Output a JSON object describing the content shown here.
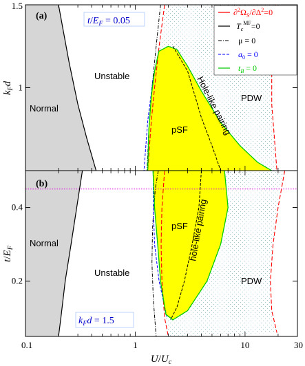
{
  "chart_data": {
    "type": "line",
    "x_axis": {
      "label": "U/U_c",
      "scale": "log",
      "range": [
        0.1,
        30
      ],
      "ticks": [
        "0.1",
        "1",
        "10",
        "30"
      ]
    },
    "legend": {
      "placement": "top-right",
      "entries": [
        {
          "label": "∂²Ω_S/∂Δ²=0",
          "color": "#ff0000",
          "style": "solid"
        },
        {
          "label": "T_c^MF=0",
          "color": "#000000",
          "style": "solid"
        },
        {
          "label": "μ = 0",
          "color": "#000000",
          "style": "dash-dot"
        },
        {
          "label": "a_0 = 0",
          "color": "#0000ff",
          "style": "dashed"
        },
        {
          "label": "t_B = 0",
          "color": "#00cc00",
          "style": "solid"
        }
      ]
    },
    "panels": [
      {
        "letter": "(a)",
        "param_label": "t/E_F = 0.05",
        "ylabel": "k_F d",
        "ylim": [
          0.5,
          1.5
        ],
        "yticks": [
          1.5,
          1
        ],
        "regions": [
          "Normal",
          "Unstable",
          "pSF",
          "PDW",
          "Hole-like pairing"
        ],
        "curves": [
          {
            "name": "T_c^MF=0",
            "points": [
              [
                0.2,
                1.5
              ],
              [
                0.22,
                1.35
              ],
              [
                0.25,
                1.15
              ],
              [
                0.3,
                0.9
              ],
              [
                0.36,
                0.7
              ],
              [
                0.44,
                0.5
              ]
            ]
          },
          {
            "name": "mu=0",
            "points": [
              [
                1.7,
                1.5
              ],
              [
                1.55,
                1.25
              ],
              [
                1.42,
                1.0
              ],
              [
                1.33,
                0.75
              ],
              [
                1.28,
                0.5
              ]
            ]
          },
          {
            "name": "a_0=0",
            "points": [
              [
                1.64,
                1.22
              ],
              [
                1.45,
                1.05
              ],
              [
                1.3,
                0.8
              ],
              [
                1.2,
                0.5
              ]
            ]
          },
          {
            "name": "d2Omega_left",
            "points": [
              [
                1.85,
                1.5
              ],
              [
                1.65,
                1.25
              ],
              [
                1.5,
                1.0
              ],
              [
                1.4,
                0.8
              ],
              [
                1.3,
                0.5
              ]
            ]
          },
          {
            "name": "d2Omega_right",
            "points": [
              [
                19,
                1.5
              ],
              [
                18,
                1.3
              ],
              [
                17.5,
                1.1
              ],
              [
                17.5,
                0.9
              ],
              [
                18.5,
                0.7
              ],
              [
                19.5,
                0.5
              ]
            ]
          },
          {
            "name": "t_B=0_upper",
            "points": [
              [
                1.64,
                1.22
              ],
              [
                2.0,
                1.25
              ],
              [
                2.4,
                1.23
              ],
              [
                3.0,
                1.13
              ],
              [
                4.0,
                0.98
              ],
              [
                6.0,
                0.79
              ],
              [
                9.0,
                0.65
              ],
              [
                13.0,
                0.55
              ],
              [
                17.5,
                0.5
              ]
            ]
          },
          {
            "name": "t_B=0_lower",
            "points": [
              [
                1.64,
                1.22
              ],
              [
                1.5,
                1.1
              ],
              [
                1.4,
                0.95
              ],
              [
                1.33,
                0.75
              ],
              [
                1.3,
                0.5
              ]
            ]
          },
          {
            "name": "hole_like_divider",
            "points": [
              [
                2.2,
                1.25
              ],
              [
                3.0,
                1.1
              ],
              [
                4.0,
                0.82
              ],
              [
                5.0,
                0.65
              ],
              [
                6.0,
                0.5
              ]
            ]
          }
        ]
      },
      {
        "letter": "(b)",
        "param_label": "k_F d = 1.5",
        "ylabel": "t/E_F",
        "ylim": [
          0.05,
          0.5
        ],
        "yticks": [
          0.4,
          0.2
        ],
        "regions": [
          "Normal",
          "Unstable",
          "pSF",
          "PDW",
          "hole-like pairing"
        ],
        "reference_line": {
          "y": 0.45,
          "color": "#dd00dd",
          "style": "dotted"
        },
        "curves": [
          {
            "name": "T_c^MF=0",
            "points": [
              [
                0.33,
                0.5
              ],
              [
                0.3,
                0.42
              ],
              [
                0.26,
                0.3
              ],
              [
                0.23,
                0.2
              ],
              [
                0.21,
                0.1
              ],
              [
                0.2,
                0.05
              ]
            ]
          },
          {
            "name": "mu=0",
            "points": [
              [
                1.62,
                0.5
              ],
              [
                1.52,
                0.45
              ],
              [
                1.44,
                0.35
              ],
              [
                1.42,
                0.25
              ],
              [
                1.46,
                0.15
              ],
              [
                1.55,
                0.05
              ]
            ]
          },
          {
            "name": "a_0=0",
            "points": [
              [
                1.46,
                0.5
              ],
              [
                1.46,
                0.4
              ],
              [
                1.5,
                0.3
              ],
              [
                1.65,
                0.2
              ],
              [
                1.95,
                0.1
              ]
            ]
          },
          {
            "name": "d2Omega_left",
            "points": [
              [
                1.85,
                0.5
              ],
              [
                1.75,
                0.4
              ],
              [
                1.72,
                0.3
              ],
              [
                1.75,
                0.2
              ],
              [
                1.85,
                0.1
              ],
              [
                2.0,
                0.05
              ]
            ]
          },
          {
            "name": "d2Omega_right",
            "points": [
              [
                23,
                0.5
              ],
              [
                20,
                0.4
              ],
              [
                18,
                0.3
              ],
              [
                17,
                0.2
              ],
              [
                17.5,
                0.12
              ],
              [
                19.5,
                0.06
              ]
            ]
          },
          {
            "name": "t_B=0",
            "points": [
              [
                1.45,
                0.5
              ],
              [
                6.5,
                0.5
              ],
              [
                7.0,
                0.4
              ],
              [
                6.0,
                0.3
              ],
              [
                4.5,
                0.2
              ],
              [
                3.0,
                0.12
              ],
              [
                2.2,
                0.095
              ],
              [
                1.9,
                0.11
              ],
              [
                1.7,
                0.2
              ],
              [
                1.6,
                0.3
              ],
              [
                1.5,
                0.4
              ],
              [
                1.45,
                0.5
              ]
            ]
          },
          {
            "name": "hole_like_divider",
            "points": [
              [
                4.0,
                0.5
              ],
              [
                3.8,
                0.4
              ],
              [
                3.3,
                0.3
              ],
              [
                2.8,
                0.2
              ],
              [
                2.4,
                0.13
              ],
              [
                2.1,
                0.095
              ]
            ]
          }
        ]
      }
    ]
  }
}
